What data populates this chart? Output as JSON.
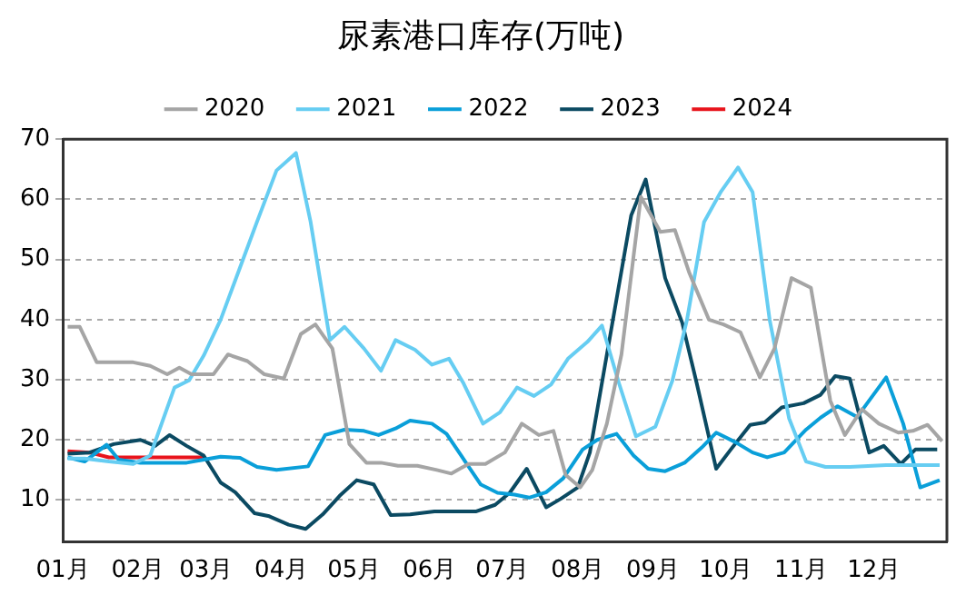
{
  "chart_data": {
    "type": "line",
    "title": "尿素港口库存(万吨)",
    "legend": "top",
    "grid": "y",
    "marker": "none",
    "line_style": "solid",
    "xlim": [
      "--01-01",
      "--12-31"
    ],
    "xticks": [
      {
        "value": "--01-01",
        "label": "01月"
      },
      {
        "value": "--02-01",
        "label": "02月"
      },
      {
        "value": "--03-01",
        "label": "03月"
      },
      {
        "value": "--04-01",
        "label": "04月"
      },
      {
        "value": "--05-01",
        "label": "05月"
      },
      {
        "value": "--06-01",
        "label": "06月"
      },
      {
        "value": "--07-01",
        "label": "07月"
      },
      {
        "value": "--08-01",
        "label": "08月"
      },
      {
        "value": "--09-01",
        "label": "09月"
      },
      {
        "value": "--10-01",
        "label": "10月"
      },
      {
        "value": "--11-01",
        "label": "11月"
      },
      {
        "value": "--12-01",
        "label": "12月"
      }
    ],
    "ylim": [
      3,
      70
    ],
    "yticks": [
      10,
      20,
      30,
      40,
      50,
      60,
      70
    ],
    "series": [
      {
        "name": "2020",
        "color": "#a5a5a5",
        "x": [
          "--01-03",
          "--01-08",
          "--01-15",
          "--01-30",
          "--02-06",
          "--02-13",
          "--02-18",
          "--02-23",
          "--03-04",
          "--03-10",
          "--03-18",
          "--03-25",
          "--04-02",
          "--04-09",
          "--04-15",
          "--04-22",
          "--04-29",
          "--05-06",
          "--05-12",
          "--05-19",
          "--05-27",
          "--06-04",
          "--06-10",
          "--06-17",
          "--06-24",
          "--07-02",
          "--07-09",
          "--07-16",
          "--07-22",
          "--07-27",
          "--08-02",
          "--08-07",
          "--08-13",
          "--08-19",
          "--08-27",
          "--09-04",
          "--09-10",
          "--09-16",
          "--09-24",
          "--09-30",
          "--10-07",
          "--10-15",
          "--10-21",
          "--10-28",
          "--11-05",
          "--11-13",
          "--11-19",
          "--11-26",
          "--12-03",
          "--12-11",
          "--12-17",
          "--12-23",
          "--12-29"
        ],
        "values": [
          38.8,
          38.8,
          32.9,
          32.9,
          32.3,
          30.9,
          32,
          30.9,
          30.9,
          34.2,
          33.1,
          30.9,
          30.2,
          37.6,
          39.2,
          35.2,
          19.3,
          16.2,
          16.2,
          15.7,
          15.7,
          15,
          14.4,
          16,
          16,
          17.9,
          22.7,
          20.8,
          21.5,
          14.2,
          12.1,
          15,
          22.7,
          34.2,
          60.4,
          54.6,
          54.9,
          47.7,
          40,
          39.2,
          37.9,
          30.4,
          35.2,
          46.9,
          45.3,
          26.5,
          20.8,
          25.1,
          22.7,
          21.2,
          21.5,
          22.5,
          19.8
        ]
      },
      {
        "name": "2021",
        "color": "#66cdf2",
        "x": [
          "--01-03",
          "--01-10",
          "--01-20",
          "--01-30",
          "--02-06",
          "--02-16",
          "--02-22",
          "--02-28",
          "--03-07",
          "--03-15",
          "--03-22",
          "--03-30",
          "--04-07",
          "--04-13",
          "--04-21",
          "--04-27",
          "--05-05",
          "--05-12",
          "--05-18",
          "--05-26",
          "--06-02",
          "--06-09",
          "--06-15",
          "--06-23",
          "--06-30",
          "--07-07",
          "--07-14",
          "--07-21",
          "--07-28",
          "--08-05",
          "--08-11",
          "--08-18",
          "--08-25",
          "--09-02",
          "--09-09",
          "--09-15",
          "--09-22",
          "--09-29",
          "--10-06",
          "--10-12",
          "--10-19",
          "--10-27",
          "--11-03",
          "--11-11",
          "--11-21",
          "--12-06",
          "--12-28"
        ],
        "values": [
          16.9,
          16.9,
          16.4,
          16,
          17.4,
          28.7,
          29.9,
          34,
          40,
          48.7,
          56.3,
          64.8,
          67.7,
          56.3,
          36.6,
          38.8,
          35.2,
          31.5,
          36.6,
          35,
          32.5,
          33.5,
          29.4,
          22.7,
          24.6,
          28.7,
          27.3,
          29.2,
          33.5,
          36.3,
          39,
          29.4,
          20.6,
          22.2,
          29.9,
          40,
          56.2,
          61.3,
          65.3,
          61.2,
          40,
          23.6,
          16.4,
          15.5,
          15.5,
          15.8,
          15.8
        ]
      },
      {
        "name": "2022",
        "color": "#0a9fd9",
        "x": [
          "--01-03",
          "--01-10",
          "--01-19",
          "--01-24",
          "--02-02",
          "--02-10",
          "--02-21",
          "--02-28",
          "--03-07",
          "--03-15",
          "--03-22",
          "--03-30",
          "--04-12",
          "--04-19",
          "--04-27",
          "--05-05",
          "--05-11",
          "--05-18",
          "--05-24",
          "--06-02",
          "--06-08",
          "--06-14",
          "--06-22",
          "--06-29",
          "--07-06",
          "--07-12",
          "--07-19",
          "--07-26",
          "--08-03",
          "--08-09",
          "--08-17",
          "--08-24",
          "--08-30",
          "--09-06",
          "--09-14",
          "--09-21",
          "--09-27",
          "--10-05",
          "--10-12",
          "--10-18",
          "--10-25",
          "--11-03",
          "--11-09",
          "--11-16",
          "--11-24",
          "--12-06",
          "--12-13",
          "--12-20",
          "--12-28"
        ],
        "values": [
          17.1,
          16.4,
          19.2,
          16.7,
          16.2,
          16.2,
          16.2,
          16.7,
          17.2,
          17,
          15.5,
          15,
          15.6,
          20.8,
          21.7,
          21.5,
          20.8,
          21.9,
          23.2,
          22.7,
          21,
          17.4,
          12.6,
          11.2,
          10.9,
          10.4,
          11.3,
          13.6,
          18.4,
          20,
          21,
          17.4,
          15.2,
          14.8,
          16.2,
          18.7,
          21.2,
          19.6,
          17.9,
          17.1,
          17.9,
          21.7,
          23.7,
          25.6,
          23.8,
          30.4,
          22.7,
          12.1,
          13.3
        ]
      },
      {
        "name": "2023",
        "color": "#0b4a62",
        "x": [
          "--01-03",
          "--01-12",
          "--01-22",
          "--02-02",
          "--02-08",
          "--02-14",
          "--02-21",
          "--02-28",
          "--03-07",
          "--03-13",
          "--03-21",
          "--03-27",
          "--04-04",
          "--04-11",
          "--04-18",
          "--04-25",
          "--05-02",
          "--05-09",
          "--05-16",
          "--05-24",
          "--06-03",
          "--06-10",
          "--06-20",
          "--06-28",
          "--07-04",
          "--07-11",
          "--07-19",
          "--07-25",
          "--08-01",
          "--08-06",
          "--08-13",
          "--08-23",
          "--08-29",
          "--09-06",
          "--09-13",
          "--09-19",
          "--09-27",
          "--10-03",
          "--10-11",
          "--10-17",
          "--10-24",
          "--11-02",
          "--11-09",
          "--11-15",
          "--11-21",
          "--11-29",
          "--12-05",
          "--12-12",
          "--12-18",
          "--12-27"
        ],
        "values": [
          17.7,
          17.9,
          19.3,
          20,
          19,
          20.8,
          19,
          17.4,
          12.9,
          11.3,
          7.8,
          7.3,
          5.9,
          5.2,
          7.6,
          10.7,
          13.3,
          12.6,
          7.5,
          7.6,
          8.1,
          8.1,
          8.1,
          9.2,
          11.2,
          15.2,
          8.8,
          10.2,
          12.1,
          17.9,
          34.2,
          57.3,
          63.3,
          46.9,
          39.5,
          29.4,
          15.2,
          18.4,
          22.5,
          22.9,
          25.4,
          26.1,
          27.5,
          30.6,
          30.2,
          17.9,
          19,
          16,
          18.4,
          18.4
        ]
      },
      {
        "name": "2024",
        "color": "#e8141c",
        "x": [
          "--01-03",
          "--01-12",
          "--01-20",
          "--01-30",
          "--02-28"
        ],
        "values": [
          18.1,
          17.9,
          17.1,
          17.1,
          17.1
        ]
      }
    ]
  }
}
